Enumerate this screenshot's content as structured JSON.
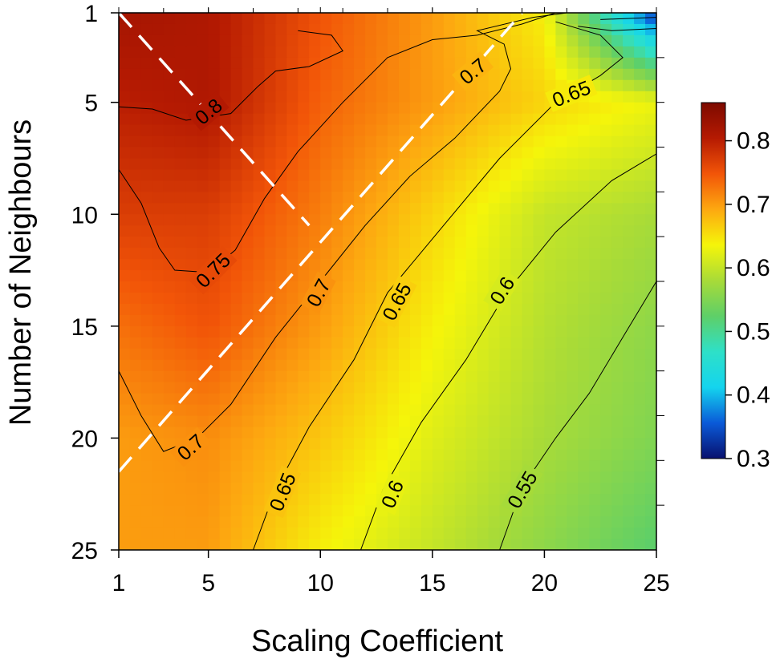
{
  "chart_data": {
    "type": "heatmap",
    "xlabel": "Scaling Coefficient",
    "ylabel": "Number of Neighbours",
    "x_range": [
      1,
      25
    ],
    "y_range": [
      1,
      25
    ],
    "y_inverted": true,
    "x_ticks": [
      "1",
      "5",
      "10",
      "15",
      "20",
      "25"
    ],
    "x_tick_values": [
      1,
      5,
      10,
      15,
      20,
      25
    ],
    "y_ticks": [
      "1",
      "5",
      "10",
      "15",
      "20",
      "25"
    ],
    "y_tick_values": [
      1,
      5,
      10,
      15,
      20,
      25
    ],
    "colorbar": {
      "min": 0.3,
      "max": 0.86,
      "ticks": [
        "0.3",
        "0.4",
        "0.5",
        "0.6",
        "0.7",
        "0.8"
      ],
      "tick_values": [
        0.3,
        0.4,
        0.5,
        0.6,
        0.7,
        0.8
      ],
      "colors": [
        "#08106e",
        "#0a5ad8",
        "#14d4ee",
        "#2ee0c8",
        "#5ecf68",
        "#a8db38",
        "#f5f50a",
        "#fda810",
        "#f25508",
        "#b51a02",
        "#7d0a00"
      ]
    },
    "grid_x": [
      1,
      5,
      10,
      15,
      20,
      25
    ],
    "grid_y": [
      1,
      5,
      10,
      15,
      20,
      25
    ],
    "grid_values": [
      [
        0.82,
        0.81,
        0.75,
        0.7,
        0.64,
        0.33
      ],
      [
        0.8,
        0.81,
        0.74,
        0.7,
        0.66,
        0.63
      ],
      [
        0.77,
        0.77,
        0.72,
        0.66,
        0.6,
        0.58
      ],
      [
        0.73,
        0.75,
        0.7,
        0.64,
        0.59,
        0.56
      ],
      [
        0.7,
        0.71,
        0.67,
        0.62,
        0.58,
        0.55
      ],
      [
        0.7,
        0.7,
        0.64,
        0.6,
        0.56,
        0.52
      ]
    ],
    "contour_labels": [
      {
        "text": "0.8",
        "x": 5,
        "y": 5.4,
        "angle": -40
      },
      {
        "text": "0.7",
        "x": 16.8,
        "y": 3.6,
        "angle": -40
      },
      {
        "text": "0.65",
        "x": 21.2,
        "y": 4.6,
        "angle": -22
      },
      {
        "text": "0.75",
        "x": 5.2,
        "y": 12.5,
        "angle": -45
      },
      {
        "text": "0.7",
        "x": 9.9,
        "y": 13.5,
        "angle": -62
      },
      {
        "text": "0.65",
        "x": 13.4,
        "y": 13.9,
        "angle": -62
      },
      {
        "text": "0.6",
        "x": 18.1,
        "y": 13.4,
        "angle": -58
      },
      {
        "text": "0.7",
        "x": 4.2,
        "y": 20.4,
        "angle": -42
      },
      {
        "text": "0.65",
        "x": 8.3,
        "y": 22.4,
        "angle": -68
      },
      {
        "text": "0.6",
        "x": 13.2,
        "y": 22.5,
        "angle": -68
      },
      {
        "text": "0.55",
        "x": 19.0,
        "y": 22.3,
        "angle": -60
      }
    ],
    "contour_lines": [
      [
        [
          1.0,
          5.2
        ],
        [
          2.5,
          5.3
        ],
        [
          4.0,
          5.8
        ],
        [
          6.0,
          5.5
        ],
        [
          7.2,
          4.3
        ],
        [
          8.0,
          3.6
        ],
        [
          9.5,
          3.4
        ],
        [
          11.0,
          2.7
        ],
        [
          10.5,
          2.0
        ],
        [
          9.0,
          1.8
        ]
      ],
      [
        [
          1.0,
          8.0
        ],
        [
          2.0,
          9.5
        ],
        [
          2.8,
          11.5
        ],
        [
          3.5,
          12.5
        ],
        [
          5.0,
          12.6
        ],
        [
          6.2,
          11.6
        ],
        [
          7.5,
          9.3
        ],
        [
          9.0,
          7.2
        ],
        [
          11.0,
          5.0
        ],
        [
          13.0,
          3.0
        ],
        [
          15.0,
          2.2
        ],
        [
          17.0,
          2.0
        ],
        [
          19.0,
          1.5
        ],
        [
          20.5,
          1.0
        ]
      ],
      [
        [
          1.0,
          17.0
        ],
        [
          2.0,
          19.0
        ],
        [
          3.0,
          20.6
        ],
        [
          4.5,
          20.0
        ],
        [
          6.0,
          18.5
        ],
        [
          8.0,
          15.5
        ],
        [
          10.0,
          13.0
        ],
        [
          12.0,
          10.5
        ],
        [
          14.0,
          8.3
        ],
        [
          16.0,
          6.6
        ],
        [
          18.0,
          4.5
        ],
        [
          18.5,
          3.5
        ],
        [
          18.2,
          2.4
        ],
        [
          17.0,
          1.8
        ],
        [
          19.5,
          1.2
        ],
        [
          21.0,
          1.0
        ]
      ],
      [
        [
          7.0,
          25.0
        ],
        [
          8.0,
          22.3
        ],
        [
          9.5,
          19.5
        ],
        [
          11.5,
          16.5
        ],
        [
          13.0,
          13.5
        ],
        [
          15.5,
          10.5
        ],
        [
          18.0,
          7.5
        ],
        [
          20.5,
          5.0
        ],
        [
          22.5,
          3.8
        ],
        [
          23.5,
          3.0
        ],
        [
          22.5,
          2.0
        ],
        [
          20.5,
          1.4
        ]
      ],
      [
        [
          11.8,
          25.0
        ],
        [
          12.8,
          22.3
        ],
        [
          14.5,
          19.3
        ],
        [
          16.5,
          16.5
        ],
        [
          18.3,
          13.5
        ],
        [
          20.5,
          10.8
        ],
        [
          23.0,
          8.5
        ],
        [
          25.0,
          7.3
        ]
      ],
      [
        [
          18.0,
          25.0
        ],
        [
          19.0,
          22.2
        ],
        [
          20.5,
          20.0
        ],
        [
          22.0,
          18.0
        ],
        [
          23.5,
          15.5
        ],
        [
          25.0,
          13.0
        ]
      ],
      [
        [
          21.5,
          1.6
        ],
        [
          23.0,
          1.8
        ],
        [
          25.0,
          1.7
        ]
      ],
      [
        [
          22.5,
          1.3
        ],
        [
          25.0,
          1.2
        ]
      ]
    ],
    "overlay_lines": [
      {
        "style": "dashed",
        "color": "#ffffff",
        "points": [
          [
            1.0,
            1.0
          ],
          [
            9.5,
            10.5
          ]
        ]
      },
      {
        "style": "dashed",
        "color": "#ffffff",
        "points": [
          [
            1.0,
            21.5
          ],
          [
            19.0,
            1.0
          ]
        ]
      }
    ]
  }
}
